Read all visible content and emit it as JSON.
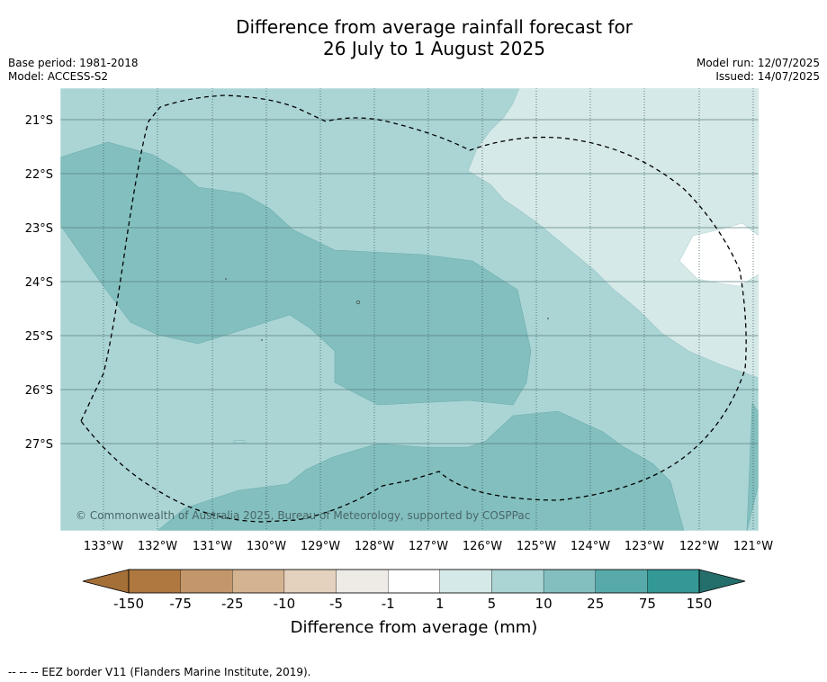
{
  "header": {
    "title_line1": "Difference from average rainfall forecast for",
    "title_line2": "26 July to 1 August 2025",
    "base_period": "Base period: 1981-2018",
    "model": "Model: ACCESS-S2",
    "model_run": "Model run: 12/07/2025",
    "issued": "Issued: 14/07/2025"
  },
  "map": {
    "lat_labels": [
      "21°S",
      "22°S",
      "23°S",
      "24°S",
      "25°S",
      "26°S",
      "27°S"
    ],
    "lon_labels": [
      "133°W",
      "132°W",
      "131°W",
      "130°W",
      "129°W",
      "128°W",
      "127°W",
      "126°W",
      "125°W",
      "124°W",
      "123°W",
      "122°W",
      "121°W"
    ],
    "copyright": "© Commonwealth of Australia 2025, Bureau of Meteorology, supported by COSPPac"
  },
  "colorbar": {
    "ticks": [
      "-150",
      "-75",
      "-25",
      "-10",
      "-5",
      "-1",
      "1",
      "5",
      "10",
      "25",
      "75",
      "150"
    ],
    "colors": [
      "#a56f38",
      "#ae7840",
      "#c3976b",
      "#d4b391",
      "#e4d1be",
      "#eeebe7",
      "#ffffff",
      "#d5e9e8",
      "#abd5d5",
      "#83bfbf",
      "#58aaaa",
      "#349896",
      "#246f6c"
    ],
    "label": "Difference from average (mm)"
  },
  "legend": {
    "eez_line": "--  --  -- EEZ border V11 (Flanders Marine Institute, 2019)."
  }
}
